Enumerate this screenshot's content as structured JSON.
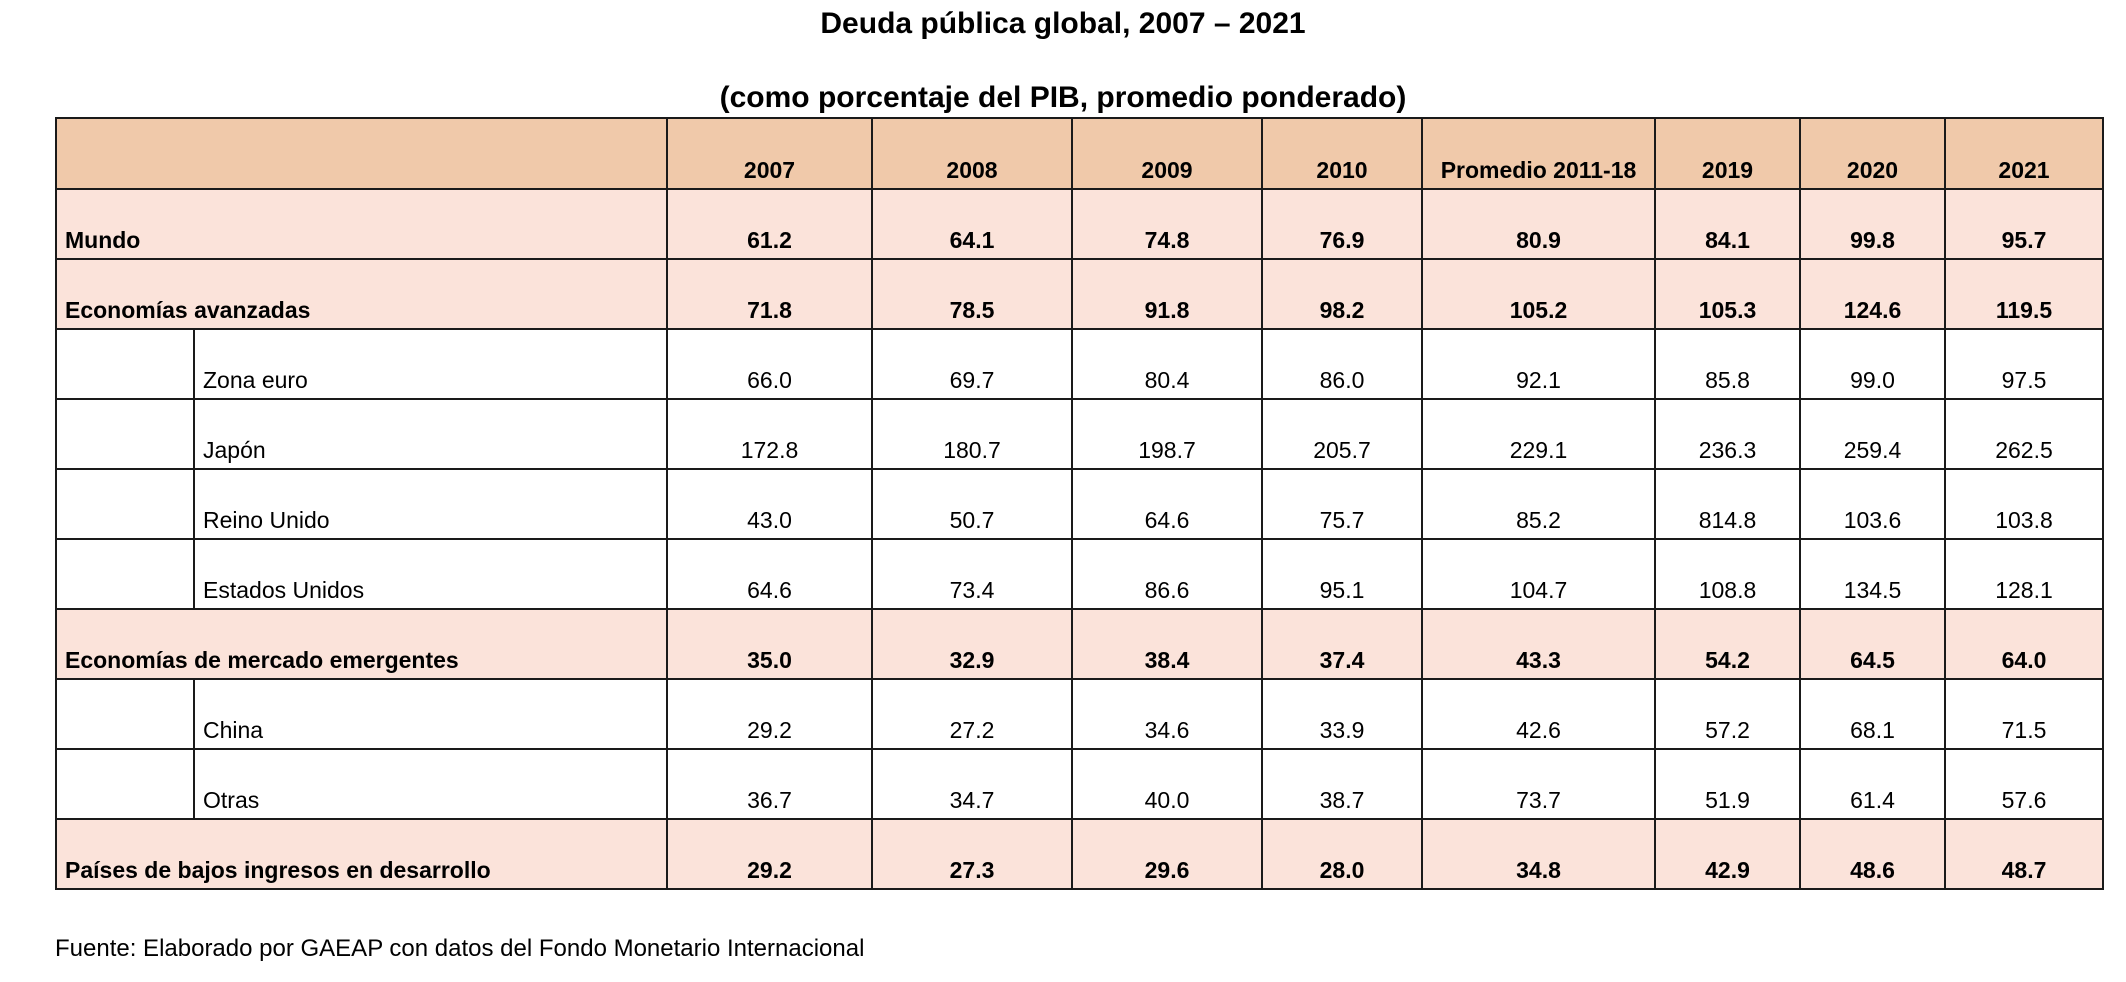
{
  "title": "Deuda pública global, 2007 – 2021",
  "subtitle": "(como porcentaje del PIB, promedio ponderado)",
  "table": {
    "columns": [
      "2007",
      "2008",
      "2009",
      "2010",
      "Promedio 2011-18",
      "2019",
      "2020",
      "2021"
    ],
    "rows": [
      {
        "label": "Mundo",
        "level": "main",
        "values": [
          "61.2",
          "64.1",
          "74.8",
          "76.9",
          "80.9",
          "84.1",
          "99.8",
          "95.7"
        ]
      },
      {
        "label": "Economías avanzadas",
        "level": "main",
        "values": [
          "71.8",
          "78.5",
          "91.8",
          "98.2",
          "105.2",
          "105.3",
          "124.6",
          "119.5"
        ]
      },
      {
        "label": "Zona euro",
        "level": "sub",
        "values": [
          "66.0",
          "69.7",
          "80.4",
          "86.0",
          "92.1",
          "85.8",
          "99.0",
          "97.5"
        ]
      },
      {
        "label": "Japón",
        "level": "sub",
        "values": [
          "172.8",
          "180.7",
          "198.7",
          "205.7",
          "229.1",
          "236.3",
          "259.4",
          "262.5"
        ]
      },
      {
        "label": "Reino Unido",
        "level": "sub",
        "values": [
          "43.0",
          "50.7",
          "64.6",
          "75.7",
          "85.2",
          "814.8",
          "103.6",
          "103.8"
        ]
      },
      {
        "label": "Estados Unidos",
        "level": "sub",
        "values": [
          "64.6",
          "73.4",
          "86.6",
          "95.1",
          "104.7",
          "108.8",
          "134.5",
          "128.1"
        ]
      },
      {
        "label": "Economías de mercado emergentes",
        "level": "main",
        "values": [
          "35.0",
          "32.9",
          "38.4",
          "37.4",
          "43.3",
          "54.2",
          "64.5",
          "64.0"
        ]
      },
      {
        "label": "China",
        "level": "sub",
        "values": [
          "29.2",
          "27.2",
          "34.6",
          "33.9",
          "42.6",
          "57.2",
          "68.1",
          "71.5"
        ]
      },
      {
        "label": "Otras",
        "level": "sub",
        "values": [
          "36.7",
          "34.7",
          "40.0",
          "38.7",
          "73.7",
          "51.9",
          "61.4",
          "57.6"
        ]
      },
      {
        "label": "Países de bajos ingresos en desarrollo",
        "level": "main",
        "values": [
          "29.2",
          "27.3",
          "29.6",
          "28.0",
          "34.8",
          "42.9",
          "48.6",
          "48.7"
        ]
      }
    ]
  },
  "source": "Fuente: Elaborado por GAEAP con datos del Fondo Monetario Internacional",
  "colors": {
    "header_bg": "#f0c9aa",
    "main_row_bg": "#fbe3da",
    "sub_row_bg": "#ffffff",
    "border": "#1a1a1a"
  }
}
